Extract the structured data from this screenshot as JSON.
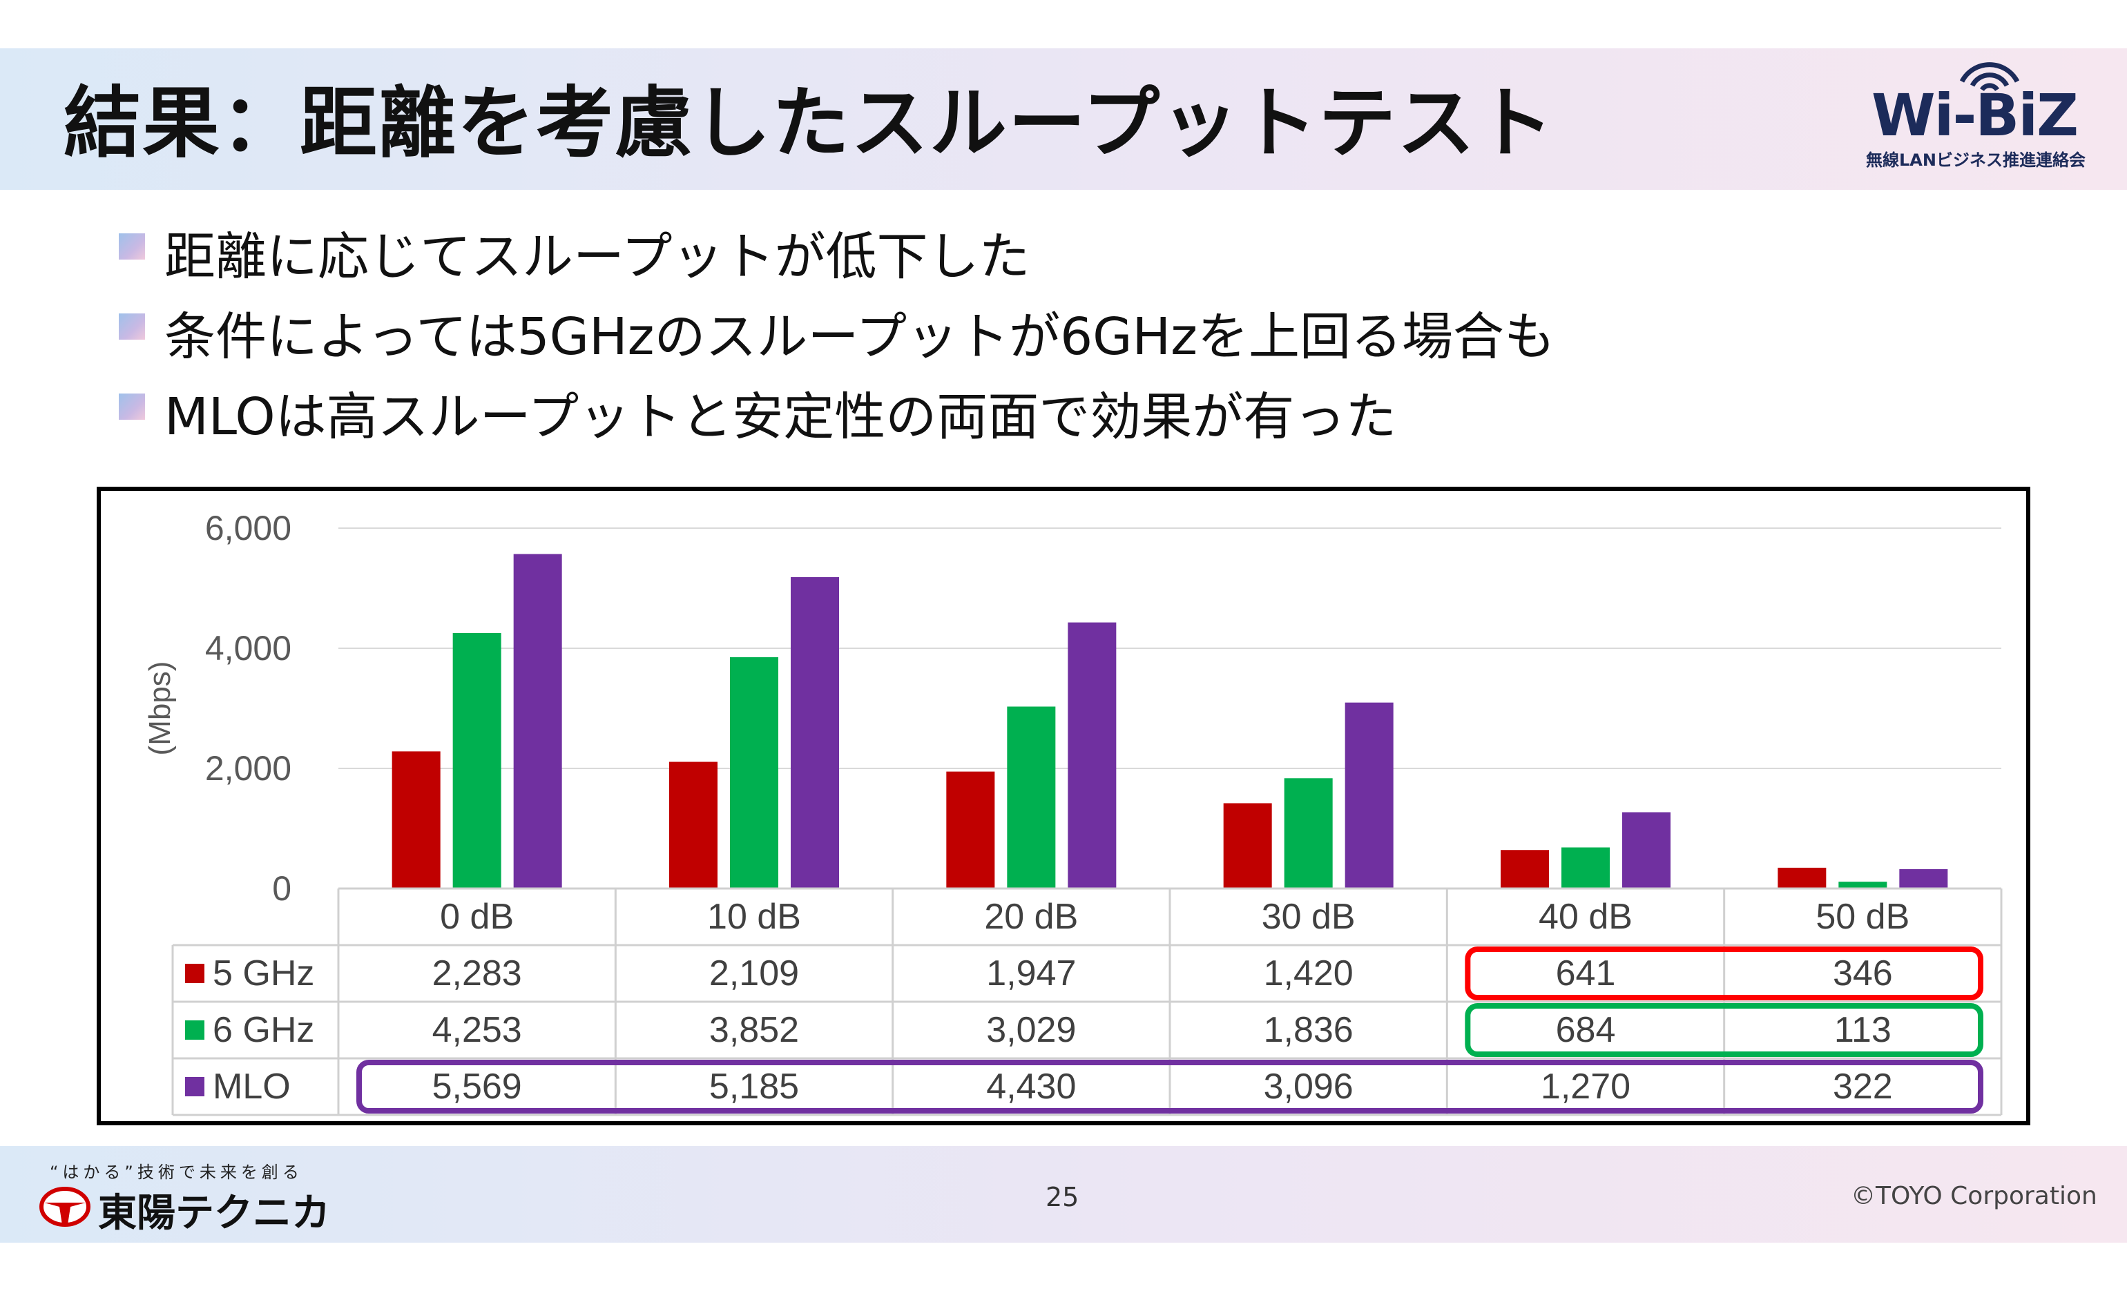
{
  "slide": {
    "title": "結果：距離を考慮したスループットテスト",
    "logo_text": "Wi-BiZ",
    "logo_subtext": "無線LANビジネス推進連絡会",
    "bullets": [
      "距離に応じてスループットが低下した",
      "条件によっては5GHzのスループットが6GHzを上回る場合も",
      "MLOは高スループットと安定性の両面で効果が有った"
    ],
    "footer": {
      "slogan": "“はかる”技術で未来を創る",
      "company": "東陽テクニカ",
      "page_number": "25",
      "copyright": "©TOYO Corporation"
    }
  },
  "chart_data": {
    "type": "bar",
    "categories": [
      "0 dB",
      "10 dB",
      "20 dB",
      "30 dB",
      "40 dB",
      "50 dB"
    ],
    "series": [
      {
        "name": "5 GHz",
        "color": "#c00000",
        "values": [
          2283,
          2109,
          1947,
          1420,
          641,
          346
        ],
        "labels": [
          "2,283",
          "2,109",
          "1,947",
          "1,420",
          "641",
          "346"
        ]
      },
      {
        "name": "6 GHz",
        "color": "#00b050",
        "values": [
          4253,
          3852,
          3029,
          1836,
          684,
          113
        ],
        "labels": [
          "4,253",
          "3,852",
          "3,029",
          "1,836",
          "684",
          "113"
        ]
      },
      {
        "name": "MLO",
        "color": "#7030a0",
        "values": [
          5569,
          5185,
          4430,
          3096,
          1270,
          322
        ],
        "labels": [
          "5,569",
          "5,185",
          "4,430",
          "3,096",
          "1,270",
          "322"
        ]
      }
    ],
    "ylabel": "(Mbps)",
    "ylim": [
      0,
      6000
    ],
    "yticks": [
      {
        "value": 0,
        "label": "0"
      },
      {
        "value": 2000,
        "label": "2,000"
      },
      {
        "value": 4000,
        "label": "4,000"
      },
      {
        "value": 6000,
        "label": "6,000"
      }
    ],
    "grid": true,
    "legend": "data-table",
    "highlights": [
      {
        "series": "5 GHz",
        "categories": [
          "40 dB",
          "50 dB"
        ],
        "color": "#ff0000"
      },
      {
        "series": "6 GHz",
        "categories": [
          "40 dB",
          "50 dB"
        ],
        "color": "#00b050"
      },
      {
        "series": "MLO",
        "categories": [
          "0 dB",
          "10 dB",
          "20 dB",
          "30 dB",
          "40 dB",
          "50 dB"
        ],
        "color": "#7030a0"
      }
    ]
  }
}
